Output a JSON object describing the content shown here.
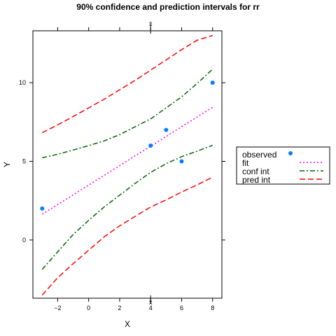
{
  "chart_data": {
    "type": "line",
    "title": "90% confidence and prediction intervals for rr",
    "xlabel": "X",
    "ylabel": "Y",
    "xlim": [
      -3.6,
      8.6
    ],
    "ylim": [
      -3.7,
      13.3
    ],
    "x_ticks": [
      -2,
      0,
      2,
      4,
      6,
      8
    ],
    "y_ticks": [
      0,
      5,
      10
    ],
    "xbar_value": 4,
    "xbar_label": "x̄",
    "grid": false,
    "legend_position": "right",
    "observed": {
      "name": "observed",
      "color": "#0080ff",
      "x": [
        -3,
        4,
        5,
        6,
        8
      ],
      "y": [
        2,
        6,
        7,
        5,
        10
      ]
    },
    "series": [
      {
        "name": "fit",
        "color": "#ff00ff",
        "dash": "dotted",
        "x": [
          -3,
          -2,
          -1,
          0,
          1,
          2,
          3,
          4,
          5,
          6,
          7,
          8
        ],
        "y": [
          1.64,
          2.25,
          2.87,
          3.49,
          4.11,
          4.73,
          5.35,
          5.96,
          6.58,
          7.2,
          7.82,
          8.44
        ]
      },
      {
        "name": "conf int",
        "color": "#006400",
        "dash": "dotdash",
        "upper": {
          "x": [
            -3,
            -2,
            -1,
            0,
            1,
            2,
            3,
            4,
            5,
            6,
            7,
            8
          ],
          "y": [
            5.23,
            5.45,
            5.72,
            6.0,
            6.3,
            6.7,
            7.2,
            7.7,
            8.4,
            9.1,
            9.95,
            10.86
          ]
        },
        "lower": {
          "x": [
            -3,
            -2,
            -1,
            0,
            1,
            2,
            3,
            4,
            5,
            6,
            7,
            8
          ],
          "y": [
            -1.87,
            -0.75,
            0.35,
            1.25,
            2.1,
            2.85,
            3.6,
            4.3,
            4.85,
            5.3,
            5.65,
            6.02
          ]
        }
      },
      {
        "name": "pred int",
        "color": "#ff0000",
        "dash": "dashed",
        "upper": {
          "x": [
            -3,
            -2,
            -1,
            0,
            1,
            2,
            3,
            4,
            5,
            6,
            7,
            8
          ],
          "y": [
            6.82,
            7.32,
            7.85,
            8.4,
            8.95,
            9.55,
            10.15,
            10.8,
            11.45,
            12.1,
            12.7,
            13.0
          ]
        },
        "lower": {
          "x": [
            -3,
            -2,
            -1,
            0,
            1,
            2,
            3,
            4,
            5,
            6,
            7,
            8
          ],
          "y": [
            -3.5,
            -2.4,
            -1.5,
            -0.65,
            0.2,
            0.9,
            1.5,
            2.1,
            2.55,
            3.05,
            3.5,
            4.0
          ]
        }
      }
    ]
  }
}
